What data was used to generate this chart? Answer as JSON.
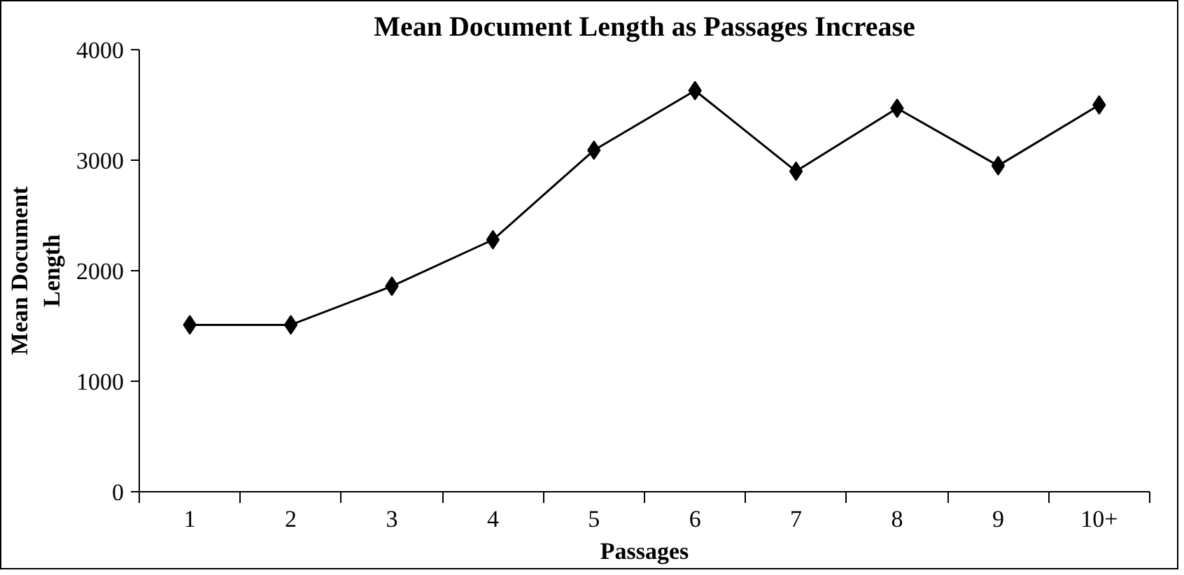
{
  "chart_data": {
    "type": "line",
    "title": "Mean Document Length as Passages Increase",
    "xlabel": "Passages",
    "ylabel": "Mean Document\nLength",
    "categories": [
      "1",
      "2",
      "3",
      "4",
      "5",
      "6",
      "7",
      "8",
      "9",
      "10+"
    ],
    "series": [
      {
        "color": "#000000",
        "values": [
          1510,
          1510,
          1860,
          2280,
          3090,
          3630,
          2900,
          3470,
          2950,
          3500
        ]
      }
    ],
    "ylim": [
      0,
      4000
    ],
    "yticks": [
      0,
      1000,
      2000,
      3000,
      4000
    ],
    "grid": false,
    "marker": "diamond",
    "line_style": "solid"
  }
}
